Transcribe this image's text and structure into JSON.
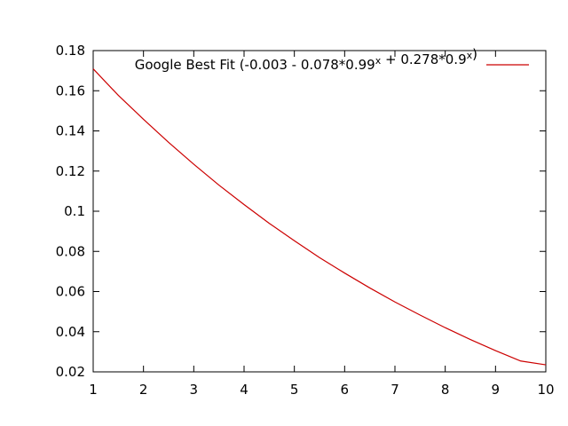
{
  "chart_data": {
    "type": "line",
    "title": "",
    "xlabel": "",
    "ylabel": "",
    "xlim": [
      1,
      10
    ],
    "ylim": [
      0.02,
      0.18
    ],
    "x_ticks": [
      1,
      2,
      3,
      4,
      5,
      6,
      7,
      8,
      9,
      10
    ],
    "x_tick_labels": [
      "1",
      "2",
      "3",
      "4",
      "5",
      "6",
      "7",
      "8",
      "9",
      "10"
    ],
    "y_ticks": [
      0.02,
      0.04,
      0.06,
      0.08,
      0.1,
      0.12,
      0.14,
      0.16,
      0.18
    ],
    "y_tick_labels": [
      "0.02",
      "0.04",
      "0.06",
      "0.08",
      "0.1",
      "0.12",
      "0.14",
      "0.16",
      "0.18"
    ],
    "grid": false,
    "legend_position": "top-right",
    "series": [
      {
        "name": "Google Best Fit (-0.003 - 0.078*0.99^x + 0.278*0.9^x)",
        "color": "#cc0000",
        "x": [
          1,
          1.5,
          2,
          2.5,
          3,
          3.5,
          4,
          4.5,
          5,
          5.5,
          6,
          6.5,
          7,
          7.5,
          8,
          8.5,
          9,
          9.5,
          10
        ],
        "y": [
          0.1709,
          0.1577,
          0.1458,
          0.1343,
          0.1234,
          0.113,
          0.1033,
          0.094,
          0.0853,
          0.0769,
          0.0692,
          0.0618,
          0.0548,
          0.0483,
          0.042,
          0.0361,
          0.0306,
          0.0254,
          0.0235
        ]
      }
    ]
  }
}
